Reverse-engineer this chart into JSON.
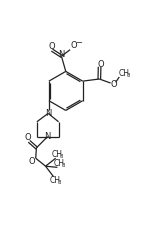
{
  "bg_color": "#ffffff",
  "line_color": "#222222",
  "line_width": 0.9,
  "font_size": 5.5,
  "fig_width": 1.46,
  "fig_height": 2.31,
  "dpi": 100,
  "xlim": [
    0,
    10
  ],
  "ylim": [
    0,
    15
  ]
}
